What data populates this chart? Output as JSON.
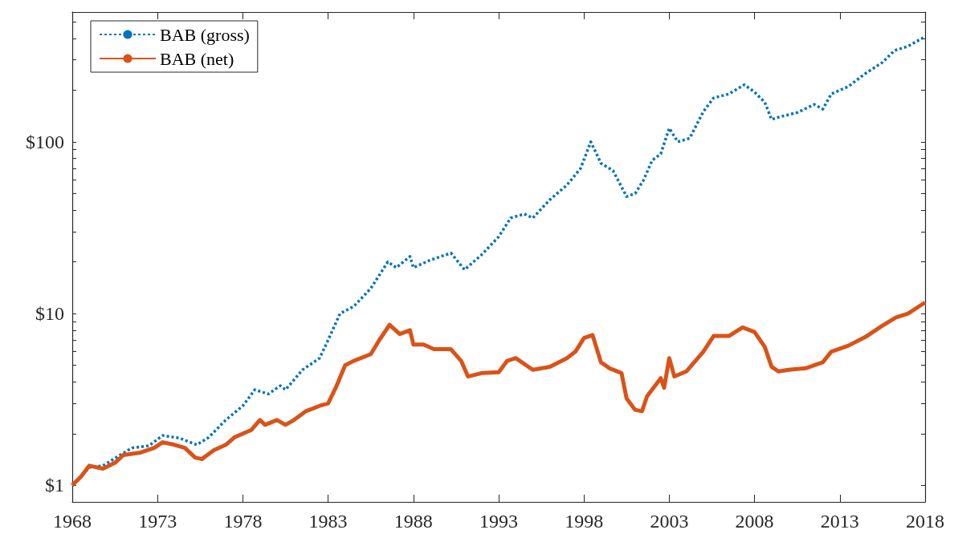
{
  "chart_data": {
    "type": "line",
    "xlim": [
      1968,
      2018
    ],
    "xticks": [
      1968,
      1973,
      1978,
      1983,
      1988,
      1993,
      1998,
      2003,
      2008,
      2013,
      2018
    ],
    "ylim": [
      0.8,
      570
    ],
    "log": "y",
    "yticks": [
      {
        "value": 1,
        "label": "$1"
      },
      {
        "value": 2,
        "label": null
      },
      {
        "value": 3,
        "label": null
      },
      {
        "value": 4,
        "label": null
      },
      {
        "value": 5,
        "label": null
      },
      {
        "value": 6,
        "label": null
      },
      {
        "value": 7,
        "label": null
      },
      {
        "value": 8,
        "label": null
      },
      {
        "value": 9,
        "label": null
      },
      {
        "value": 10,
        "label": "$10"
      },
      {
        "value": 20,
        "label": null
      },
      {
        "value": 30,
        "label": null
      },
      {
        "value": 40,
        "label": null
      },
      {
        "value": 50,
        "label": null
      },
      {
        "value": 60,
        "label": null
      },
      {
        "value": 70,
        "label": null
      },
      {
        "value": 80,
        "label": null
      },
      {
        "value": 90,
        "label": null
      },
      {
        "value": 100,
        "label": "$100"
      },
      {
        "value": 200,
        "label": null
      },
      {
        "value": 300,
        "label": null
      },
      {
        "value": 400,
        "label": null
      },
      {
        "value": 500,
        "label": null
      }
    ],
    "grid": false,
    "legend": "top left",
    "marker": "none",
    "series": [
      {
        "name": "BAB (gross)",
        "color": "#0072bd",
        "line_style": "dotted",
        "x": [
          1968,
          1969,
          1969.8,
          1970.8,
          1971.5,
          1972.5,
          1973.3,
          1974.3,
          1975.3,
          1976,
          1977,
          1978,
          1978.7,
          1979.5,
          1980.2,
          1980.5,
          1981.5,
          1982.5,
          1983,
          1983.7,
          1984.5,
          1985.5,
          1986.5,
          1987,
          1987.8,
          1988,
          1989,
          1990.2,
          1991,
          1992,
          1993,
          1993.7,
          1994.5,
          1995,
          1996,
          1997,
          1997.8,
          1998.4,
          1999,
          1999.7,
          2000.5,
          2001,
          2001.5,
          2002,
          2002.5,
          2003,
          2003.5,
          2004.2,
          2005,
          2005.6,
          2006.5,
          2007.4,
          2008,
          2008.6,
          2009,
          2009.5,
          2010.5,
          2011.5,
          2012,
          2012.5,
          2013.5,
          2014.5,
          2015.5,
          2016.2,
          2017,
          2018
        ],
        "values": [
          1.0,
          1.27,
          1.3,
          1.5,
          1.65,
          1.7,
          1.95,
          1.88,
          1.72,
          1.9,
          2.4,
          2.9,
          3.6,
          3.4,
          3.8,
          3.6,
          4.7,
          5.5,
          7,
          10,
          11,
          14,
          20,
          18.5,
          21.5,
          18.5,
          20.5,
          22.5,
          18,
          22,
          28,
          36,
          38,
          36,
          46,
          56,
          70,
          100,
          75,
          68,
          48,
          50,
          60,
          78,
          85,
          120,
          100,
          105,
          150,
          180,
          190,
          215,
          195,
          170,
          135,
          140,
          148,
          165,
          155,
          190,
          210,
          250,
          290,
          340,
          360,
          410
        ]
      },
      {
        "name": "BAB (net)",
        "color": "#d95319",
        "line_style": "solid",
        "x": [
          1968,
          1968.5,
          1969,
          1969.8,
          1970.5,
          1971,
          1972,
          1972.8,
          1973.3,
          1974,
          1974.6,
          1975.2,
          1975.6,
          1976.3,
          1977,
          1977.5,
          1978.5,
          1979,
          1979.3,
          1980,
          1980.5,
          1981,
          1981.7,
          1982.5,
          1983,
          1983.5,
          1984,
          1984.5,
          1985.5,
          1986,
          1986.6,
          1987.2,
          1987.8,
          1988,
          1988.6,
          1989.2,
          1990.2,
          1990.8,
          1991.2,
          1992,
          1993,
          1993.5,
          1994,
          1995,
          1996,
          1997,
          1997.5,
          1998,
          1998.5,
          1999,
          1999.5,
          2000.2,
          2000.5,
          2001,
          2001.4,
          2001.7,
          2002.5,
          2002.7,
          2003,
          2003.3,
          2004,
          2005,
          2005.6,
          2006.5,
          2007.3,
          2008,
          2008.6,
          2009,
          2009.4,
          2010,
          2011,
          2012,
          2012.5,
          2013.5,
          2014.5,
          2015.5,
          2016.3,
          2017,
          2018
        ],
        "values": [
          1.0,
          1.12,
          1.3,
          1.25,
          1.35,
          1.5,
          1.55,
          1.65,
          1.78,
          1.72,
          1.65,
          1.45,
          1.42,
          1.6,
          1.72,
          1.9,
          2.1,
          2.4,
          2.25,
          2.4,
          2.25,
          2.4,
          2.7,
          2.9,
          3.0,
          3.8,
          5.0,
          5.3,
          5.8,
          7.0,
          8.6,
          7.6,
          8.0,
          6.6,
          6.6,
          6.2,
          6.2,
          5.3,
          4.3,
          4.5,
          4.55,
          5.3,
          5.5,
          4.7,
          4.9,
          5.5,
          6.0,
          7.2,
          7.5,
          5.2,
          4.8,
          4.5,
          3.2,
          2.75,
          2.7,
          3.3,
          4.2,
          3.7,
          5.5,
          4.3,
          4.6,
          6.0,
          7.4,
          7.4,
          8.3,
          7.8,
          6.4,
          4.9,
          4.6,
          4.7,
          4.8,
          5.2,
          6.0,
          6.5,
          7.3,
          8.5,
          9.5,
          10.0,
          11.6
        ]
      }
    ]
  }
}
